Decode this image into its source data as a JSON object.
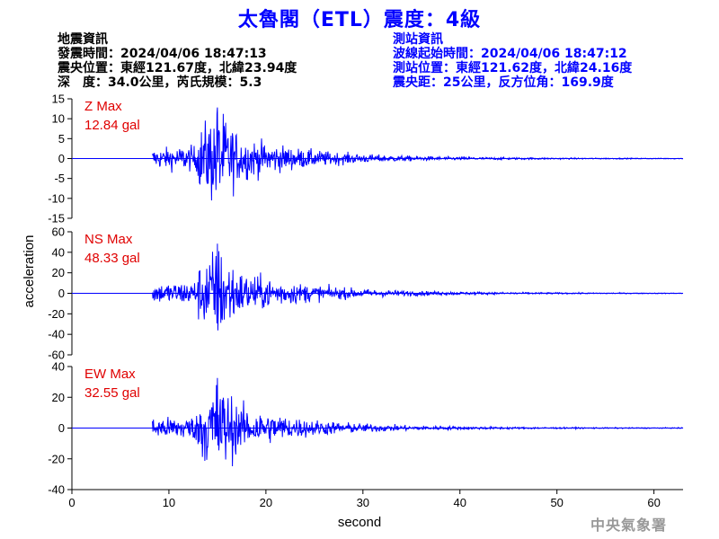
{
  "header": {
    "title": "太魯閣（ETL）震度：4級",
    "left_info": [
      "地震資訊",
      "發震時間：2024/04/06 18:47:13",
      "震央位置：東經121.67度，北緯23.94度",
      "深　度：34.0公里，芮氏規模：5.3"
    ],
    "right_info": [
      "測站資訊",
      "波線起始時間：2024/04/06 18:47:12",
      "測站位置：東經121.62度，北緯24.16度",
      "震央距：25公里，反方位角：169.9度"
    ],
    "watermark": "中央氣象署"
  },
  "chart_data": {
    "type": "line",
    "xlabel": "second",
    "ylabel": "acceleration",
    "xlim": [
      0,
      63
    ],
    "xticks": [
      0,
      10,
      20,
      30,
      40,
      50,
      60
    ],
    "line_color": "#0000ff",
    "label_color": "#e00000",
    "signal_onset": 8.3,
    "peak_time": 15,
    "panels": [
      {
        "name": "Z",
        "max_label": "Z Max",
        "max_value": "12.84 gal",
        "peak": 12.84,
        "ylim": [
          -15,
          15
        ],
        "yticks": [
          -15,
          -10,
          -5,
          0,
          5,
          10,
          15
        ]
      },
      {
        "name": "NS",
        "max_label": "NS Max",
        "max_value": "48.33 gal",
        "peak": 48.33,
        "ylim": [
          -60,
          60
        ],
        "yticks": [
          -60,
          -40,
          -20,
          0,
          20,
          40,
          60
        ]
      },
      {
        "name": "EW",
        "max_label": "EW Max",
        "max_value": "32.55 gal",
        "peak": 32.55,
        "ylim": [
          -40,
          40
        ],
        "yticks": [
          -40,
          -20,
          0,
          20,
          40
        ]
      }
    ]
  }
}
